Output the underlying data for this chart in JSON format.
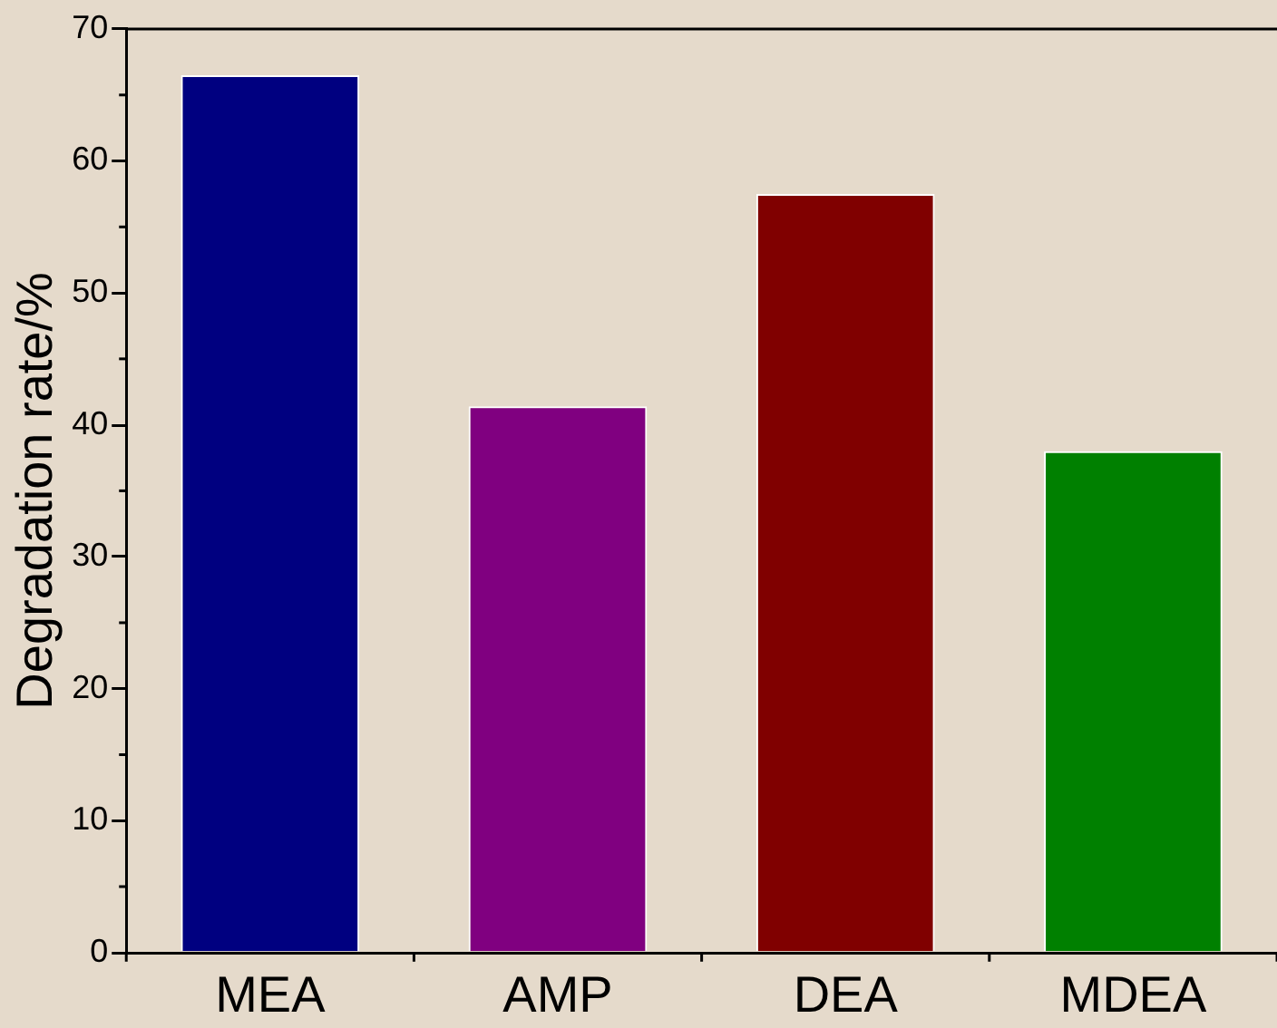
{
  "chart_data": {
    "type": "bar",
    "ylabel": "Degradation rate/%",
    "categories": [
      "MEA",
      "AMP",
      "DEA",
      "MDEA"
    ],
    "values": [
      66.5,
      41.4,
      57.5,
      38.0
    ],
    "colors": [
      "#000080",
      "#800080",
      "#800000",
      "#008000"
    ],
    "ylim": [
      0,
      70
    ],
    "yticks": [
      0,
      10,
      20,
      30,
      40,
      50,
      60,
      70
    ],
    "grid": false,
    "legend": false
  }
}
